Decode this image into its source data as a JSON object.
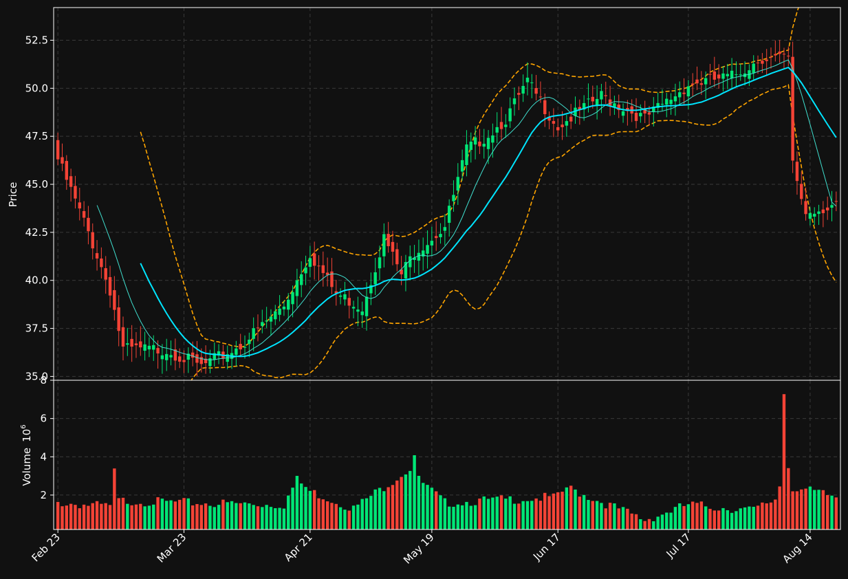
{
  "chart_data": {
    "type": "candlestick",
    "price_axis": {
      "label": "Price",
      "ylim": [
        34.8,
        54.2
      ],
      "ticks": [
        35.0,
        37.5,
        40.0,
        42.5,
        45.0,
        47.5,
        50.0,
        52.5
      ],
      "tick_labels": [
        "35.0",
        "37.5",
        "40.0",
        "42.5",
        "45.0",
        "47.5",
        "50.0",
        "52.5"
      ]
    },
    "volume_axis": {
      "label": "Volume",
      "exponent": "6",
      "ylim": [
        0.2,
        8.0
      ],
      "ticks": [
        2,
        4,
        6,
        8
      ],
      "tick_labels": [
        "2",
        "4",
        "6",
        "8"
      ]
    },
    "x_axis": {
      "ticks": [
        {
          "date": "2024-02-23",
          "label": "Feb 23"
        },
        {
          "date": "2024-03-23",
          "label": "Mar 23"
        },
        {
          "date": "2024-04-21",
          "label": "Apr 21"
        },
        {
          "date": "2024-05-19",
          "label": "May 19"
        },
        {
          "date": "2024-06-17",
          "label": "Jun 17"
        },
        {
          "date": "2024-07-17",
          "label": "Jul 17"
        },
        {
          "date": "2024-08-14",
          "label": "Aug 14"
        }
      ]
    },
    "colors": {
      "up": "#00e676",
      "down": "#f44336",
      "ma_fast": "#40e0d0",
      "ma_slow": "#00e5ff",
      "bands": "#ffa500",
      "background": "#111111"
    },
    "grid": true,
    "indicators": [
      "moving_average_fast",
      "moving_average_slow",
      "upper_band",
      "lower_band"
    ],
    "start_date": "2024-02-23",
    "end_date": "2024-08-20",
    "price_anchors": [
      [
        "2024-02-23",
        46.3
      ],
      [
        "2024-03-01",
        42.5
      ],
      [
        "2024-03-06",
        39.5
      ],
      [
        "2024-03-09",
        36.4
      ],
      [
        "2024-03-19",
        36.4
      ],
      [
        "2024-03-27",
        35.5
      ],
      [
        "2024-04-05",
        36.6
      ],
      [
        "2024-04-15",
        38.7
      ],
      [
        "2024-04-21",
        41.4
      ],
      [
        "2024-04-27",
        39.3
      ],
      [
        "2024-05-03",
        38.6
      ],
      [
        "2024-05-08",
        42.2
      ],
      [
        "2024-05-12",
        40.3
      ],
      [
        "2024-05-15",
        41.5
      ],
      [
        "2024-05-22",
        42.8
      ],
      [
        "2024-05-27",
        46.8
      ],
      [
        "2024-06-01",
        47.6
      ],
      [
        "2024-06-05",
        48.4
      ],
      [
        "2024-06-10",
        50.3
      ],
      [
        "2024-06-17",
        48.0
      ],
      [
        "2024-06-27",
        49.6
      ],
      [
        "2024-07-07",
        48.4
      ],
      [
        "2024-07-17",
        50.2
      ],
      [
        "2024-07-27",
        50.6
      ],
      [
        "2024-08-03",
        51.6
      ],
      [
        "2024-08-09",
        51.5
      ],
      [
        "2024-08-10",
        46.0
      ],
      [
        "2024-08-13",
        43.5
      ],
      [
        "2024-08-20",
        44.0
      ]
    ],
    "volume_anchors": [
      [
        "2024-02-23",
        1.6
      ],
      [
        "2024-03-06",
        1.4
      ],
      [
        "2024-03-07",
        3.2
      ],
      [
        "2024-03-08",
        1.7
      ],
      [
        "2024-03-23",
        1.6
      ],
      [
        "2024-04-15",
        1.5
      ],
      [
        "2024-04-18",
        2.8
      ],
      [
        "2024-04-21",
        2.2
      ],
      [
        "2024-05-01",
        1.3
      ],
      [
        "2024-05-14",
        3.4
      ],
      [
        "2024-05-15",
        4.1
      ],
      [
        "2024-05-16",
        2.8
      ],
      [
        "2024-05-22",
        1.6
      ],
      [
        "2024-06-17",
        1.9
      ],
      [
        "2024-06-19",
        2.4
      ],
      [
        "2024-07-07",
        0.7
      ],
      [
        "2024-07-17",
        1.5
      ],
      [
        "2024-08-01",
        1.2
      ],
      [
        "2024-08-06",
        1.8
      ],
      [
        "2024-08-07",
        2.5
      ],
      [
        "2024-08-08",
        7.4
      ],
      [
        "2024-08-09",
        3.5
      ],
      [
        "2024-08-10",
        2.4
      ],
      [
        "2024-08-20",
        1.9
      ]
    ]
  }
}
